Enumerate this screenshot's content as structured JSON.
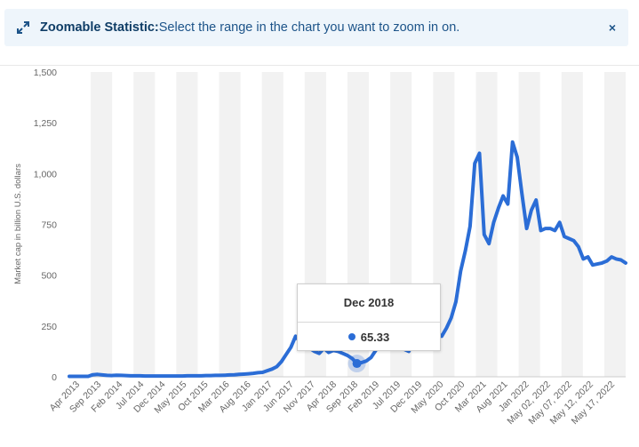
{
  "banner": {
    "title": "Zoomable Statistic:",
    "text": "Select the range in the chart you want to zoom in on.",
    "close_label": "×"
  },
  "tooltip": {
    "title": "Dec 2018",
    "value": "65.33"
  },
  "colors": {
    "line": "#2b6dd6",
    "band": "#f2f2f2",
    "axis_text": "#666666",
    "banner_bg": "#eef5fb"
  },
  "chart_data": {
    "type": "line",
    "title": "",
    "xlabel": "",
    "ylabel": "Market cap in billion U.S. dollars",
    "ylim": [
      0,
      1500
    ],
    "yticks": [
      0,
      250,
      500,
      750,
      1000,
      1250,
      1500
    ],
    "ytick_labels": [
      "0",
      "250",
      "500",
      "750",
      "1,000",
      "1,250",
      "1,500"
    ],
    "xtick_labels": [
      "Apr 2013",
      "Sep 2013",
      "Feb 2014",
      "Jul 2014",
      "Dec 2014",
      "May 2015",
      "Oct 2015",
      "Mar 2016",
      "Aug 2016",
      "Jan 2017",
      "Jun 2017",
      "Nov 2017",
      "Apr 2018",
      "Sep 2018",
      "Feb 2019",
      "Jul 2019",
      "Dec 2019",
      "May 2020",
      "Oct 2020",
      "Mar 2021",
      "Aug 2021",
      "Jan 2022",
      "May 02, 2022",
      "May 07, 2022",
      "May 12, 2022",
      "May 17, 2022"
    ],
    "grid": "alternating vertical bands",
    "series": [
      {
        "values": [
          2,
          2,
          2,
          2,
          2,
          10,
          12,
          9,
          7,
          6,
          8,
          7,
          6,
          5,
          5,
          5,
          4,
          4,
          4,
          4,
          4,
          4,
          4,
          4,
          4,
          5,
          5,
          5,
          5,
          6,
          6,
          7,
          7,
          8,
          9,
          10,
          12,
          13,
          15,
          17,
          20,
          22,
          30,
          38,
          50,
          75,
          110,
          145,
          200,
          170,
          150,
          140,
          125,
          115,
          140,
          120,
          130,
          125,
          115,
          105,
          90,
          65,
          70,
          78,
          95,
          130,
          180,
          190,
          160,
          145,
          150,
          135,
          125,
          175,
          165,
          170,
          190,
          210,
          215,
          200,
          240,
          290,
          370,
          520,
          620,
          740,
          1050,
          1100,
          700,
          655,
          760,
          830,
          890,
          850,
          1155,
          1080,
          900,
          730,
          820,
          870,
          720,
          730,
          730,
          720,
          760,
          690,
          680,
          670,
          640,
          580,
          590,
          550,
          555,
          560,
          570,
          590,
          580,
          575,
          560
        ]
      }
    ],
    "highlight": {
      "label": "Dec 2018",
      "value": 65.33
    }
  }
}
